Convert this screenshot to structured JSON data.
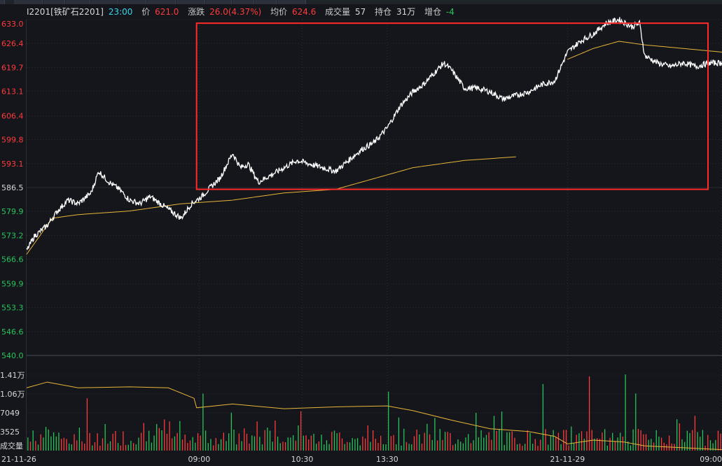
{
  "header": {
    "symbol": "I2201[铁矿石2201]",
    "time": "23:00",
    "price_label": "价",
    "price": "621.0",
    "change_label": "涨跌",
    "change": "26.0(4.37%)",
    "avg_label": "均价",
    "avg": "624.6",
    "volume_label": "成交量",
    "volume": "57",
    "oi_label": "持仓",
    "oi": "31万",
    "oi_change_label": "增仓",
    "oi_change": "-4"
  },
  "colors": {
    "background": "#14161b",
    "price_line": "#ffffff",
    "avg_line": "#e8b53a",
    "up": "#ff3b3b",
    "down": "#29c45a",
    "highlight_box": "#ff2a2a",
    "grid": "#3a3e46"
  },
  "chart_data": [
    {
      "type": "line",
      "y_ticks": [
        "633.0",
        "626.4",
        "619.7",
        "613.1",
        "606.4",
        "599.8",
        "593.1",
        "586.5",
        "579.9",
        "573.2",
        "566.6",
        "559.9",
        "553.3",
        "546.6",
        "540.0"
      ],
      "ylim": [
        540.0,
        633.0
      ],
      "reference_price": 586.5,
      "series": [
        {
          "role": "price",
          "points": [
            [
              0,
              569
            ],
            [
              3,
              573
            ],
            [
              8,
              576
            ],
            [
              12,
              580
            ],
            [
              16,
              583
            ],
            [
              20,
              582
            ],
            [
              25,
              585
            ],
            [
              28,
              591
            ],
            [
              32,
              588
            ],
            [
              36,
              586
            ],
            [
              40,
              583
            ],
            [
              44,
              582
            ],
            [
              48,
              584
            ],
            [
              52,
              582
            ],
            [
              56,
              580
            ],
            [
              60,
              578
            ],
            [
              64,
              582
            ],
            [
              68,
              584
            ],
            [
              72,
              587
            ],
            [
              75,
              589
            ],
            [
              80,
              596
            ],
            [
              83,
              592
            ],
            [
              86,
              593
            ],
            [
              90,
              588
            ],
            [
              95,
              590
            ],
            [
              100,
              592
            ],
            [
              105,
              594
            ],
            [
              110,
              593
            ],
            [
              115,
              592
            ],
            [
              120,
              591
            ],
            [
              125,
              594
            ],
            [
              130,
              597
            ],
            [
              135,
              599
            ],
            [
              140,
              603
            ],
            [
              145,
              609
            ],
            [
              150,
              613
            ],
            [
              154,
              615
            ],
            [
              158,
              618
            ],
            [
              162,
              621
            ],
            [
              165,
              619
            ],
            [
              170,
              614
            ],
            [
              175,
              614
            ],
            [
              180,
              613
            ],
            [
              185,
              611
            ],
            [
              190,
              612
            ],
            [
              195,
              613
            ],
            [
              200,
              615
            ],
            [
              205,
              616
            ],
            [
              210,
              624
            ],
            [
              215,
              627
            ],
            [
              220,
              629
            ],
            [
              225,
              632
            ],
            [
              230,
              633
            ],
            [
              235,
              631
            ],
            [
              238,
              632
            ],
            [
              240,
              623
            ],
            [
              245,
              621
            ],
            [
              250,
              620
            ],
            [
              255,
              621
            ],
            [
              260,
              620
            ],
            [
              265,
              621
            ],
            [
              270,
              621
            ]
          ]
        },
        {
          "role": "average",
          "points": [
            [
              0,
              568
            ],
            [
              10,
              578
            ],
            [
              20,
              579
            ],
            [
              40,
              580
            ],
            [
              60,
              582
            ],
            [
              80,
              583
            ],
            [
              100,
              585
            ],
            [
              120,
              586
            ],
            [
              125,
              587
            ],
            [
              135,
              589
            ],
            [
              150,
              592
            ],
            [
              170,
              594
            ],
            [
              190,
              595
            ],
            [
              210,
              622
            ],
            [
              220,
              625
            ],
            [
              230,
              627
            ],
            [
              240,
              626
            ],
            [
              255,
              625
            ],
            [
              270,
              624
            ]
          ]
        }
      ]
    },
    {
      "type": "bar",
      "y_ticks": [
        "1.41万",
        "1.06万",
        "7049",
        "3525",
        "成交量"
      ],
      "ylim": [
        0,
        17600
      ],
      "open_interest_line": [
        [
          0,
          0.66
        ],
        [
          8,
          0.72
        ],
        [
          20,
          0.66
        ],
        [
          40,
          0.67
        ],
        [
          55,
          0.66
        ],
        [
          65,
          0.55
        ],
        [
          66,
          0.45
        ],
        [
          80,
          0.49
        ],
        [
          100,
          0.44
        ],
        [
          120,
          0.46
        ],
        [
          140,
          0.47
        ],
        [
          150,
          0.42
        ],
        [
          165,
          0.32
        ],
        [
          180,
          0.23
        ],
        [
          195,
          0.2
        ],
        [
          205,
          0.15
        ],
        [
          210,
          0.07
        ],
        [
          220,
          0.11
        ],
        [
          232,
          0.09
        ],
        [
          240,
          0.05
        ],
        [
          255,
          0.03
        ],
        [
          270,
          0.01
        ]
      ],
      "volume_bars": {
        "count": 270,
        "peaks": [
          [
            23,
            0.55
          ],
          [
            68,
            0.6
          ],
          [
            140,
            0.62
          ],
          [
            200,
            0.7
          ],
          [
            218,
            0.78
          ],
          [
            232,
            0.8
          ],
          [
            236,
            0.6
          ]
        ]
      }
    }
  ],
  "x_axis": {
    "labels": [
      {
        "text": "21-11-26",
        "t": 0
      },
      {
        "text": "09:00",
        "t": 67
      },
      {
        "text": "10:30",
        "t": 107
      },
      {
        "text": "13:30",
        "t": 140
      },
      {
        "text": "21-11-29",
        "t": 210
      },
      {
        "text": "09:00",
        "t": 270
      }
    ],
    "t_max": 270
  }
}
